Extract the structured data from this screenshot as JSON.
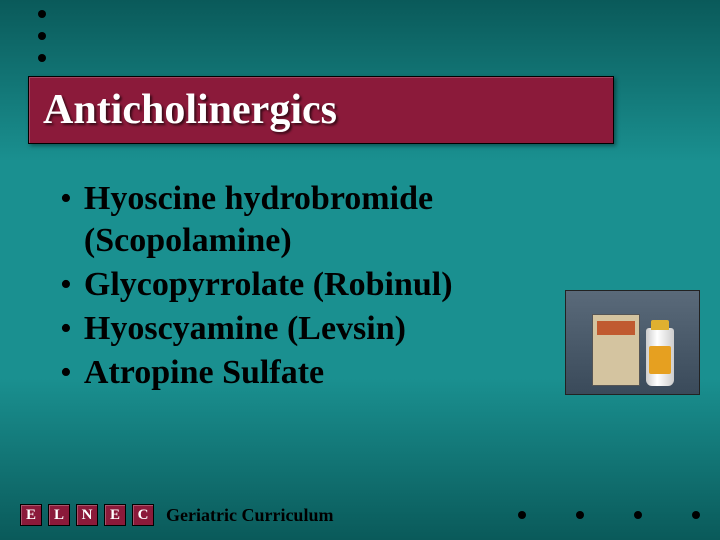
{
  "title": "Anticholinergics",
  "bullets": [
    "Hyoscine hydrobromide (Scopolamine)",
    "Glycopyrrolate (Robinul)",
    "Hyoscyamine (Levsin)",
    "Atropine Sulfate"
  ],
  "footer": {
    "letters": [
      "E",
      "L",
      "N",
      "E",
      "C"
    ],
    "text": "Geriatric Curriculum"
  },
  "colors": {
    "background_top": "#0a5a5a",
    "background_mid": "#1a9090",
    "title_box": "#8b1a3a",
    "title_text": "#ffffff",
    "body_text": "#000000"
  },
  "image": {
    "description": "medication-box-and-vial",
    "position": "right-middle"
  }
}
